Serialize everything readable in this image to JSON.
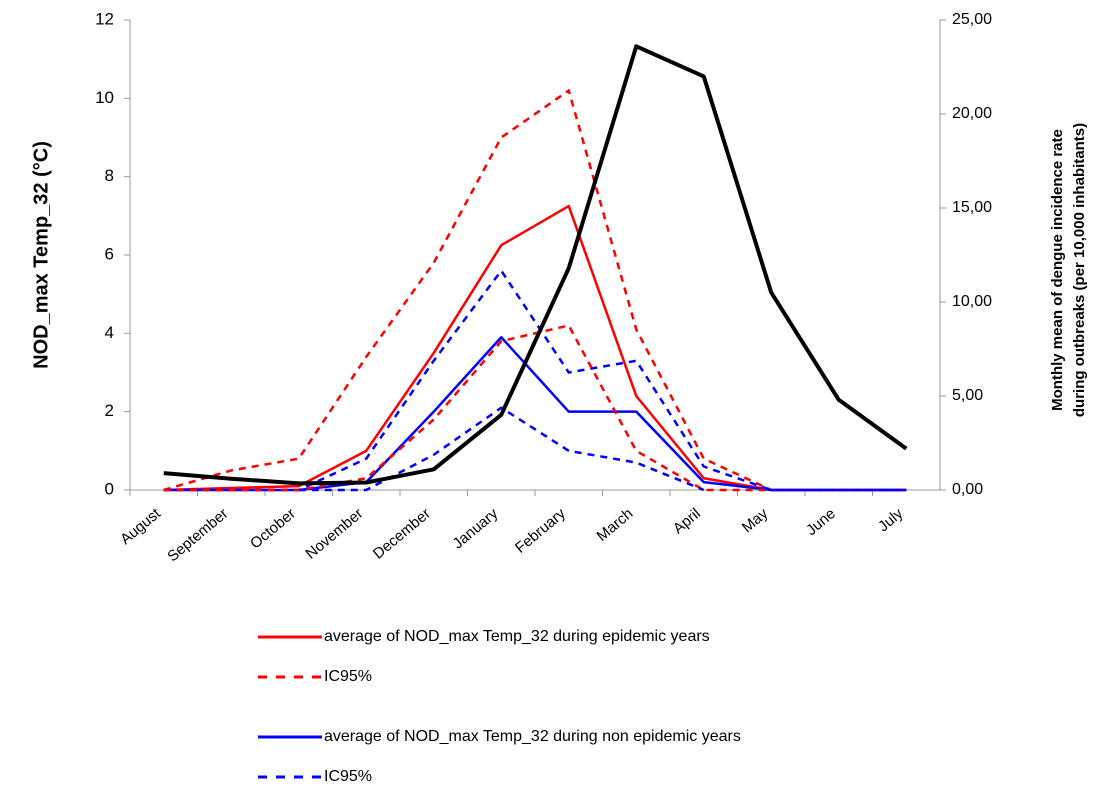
{
  "chart_data": {
    "type": "line",
    "ylabel": "NOD_max Temp_32 (°C)",
    "y2label": [
      "Monthly mean of dengue incidence rate",
      "during outbreaks (per 10,000 inhabitants)"
    ],
    "categories": [
      "August",
      "September",
      "October",
      "November",
      "December",
      "January",
      "February",
      "March",
      "April",
      "May",
      "June",
      "July"
    ],
    "ylim": [
      0,
      12
    ],
    "yticks": [
      0,
      2,
      4,
      6,
      8,
      10,
      12
    ],
    "y2lim": [
      0,
      25
    ],
    "y2ticks": [
      {
        "value": 0,
        "label": "0,00"
      },
      {
        "value": 5,
        "label": "5,00"
      },
      {
        "value": 10,
        "label": "10,00"
      },
      {
        "value": 15,
        "label": "15,00"
      },
      {
        "value": 20,
        "label": "20,00"
      },
      {
        "value": 25,
        "label": "25,00"
      }
    ],
    "series": [
      {
        "name": "average of NOD_max Temp_32 during epidemic years",
        "color": "#ff0000",
        "dashed": false,
        "values": [
          0,
          0.05,
          0.1,
          1.0,
          3.5,
          6.25,
          7.25,
          2.4,
          0.3,
          0,
          0,
          0
        ]
      },
      {
        "name": "IC95%",
        "color": "#ff0000",
        "dashed": true,
        "values": [
          0,
          0.5,
          0.8,
          3.4,
          5.8,
          9.0,
          10.2,
          4.1,
          0.8,
          0,
          0,
          0
        ]
      },
      {
        "name": "average of NOD_max Temp_32 during non epidemic years",
        "color": "#0000ff",
        "dashed": false,
        "values": [
          0,
          0,
          0,
          0.2,
          2.0,
          3.9,
          2.0,
          2.0,
          0.2,
          0,
          0,
          0
        ]
      },
      {
        "name": "IC95%",
        "color": "#0000ff",
        "dashed": true,
        "values": [
          0,
          0,
          0,
          0.8,
          3.3,
          5.6,
          3.0,
          3.3,
          0.6,
          0,
          0,
          0
        ]
      },
      {
        "color": "#ff0000",
        "dashed": true,
        "values": [
          0,
          0,
          0,
          0.3,
          1.8,
          3.8,
          4.2,
          1.0,
          0,
          0,
          null,
          null
        ]
      },
      {
        "color": "#0000ff",
        "dashed": true,
        "values": [
          null,
          null,
          0,
          0,
          0.9,
          2.1,
          1.0,
          0.7,
          0,
          null,
          null,
          null
        ]
      },
      {
        "color": "#000000",
        "dashed": false,
        "axis": "y2",
        "values": [
          0.9,
          0.6,
          0.35,
          0.4,
          1.1,
          4.0,
          11.8,
          23.6,
          22.0,
          10.5,
          4.8,
          2.2
        ]
      }
    ]
  }
}
